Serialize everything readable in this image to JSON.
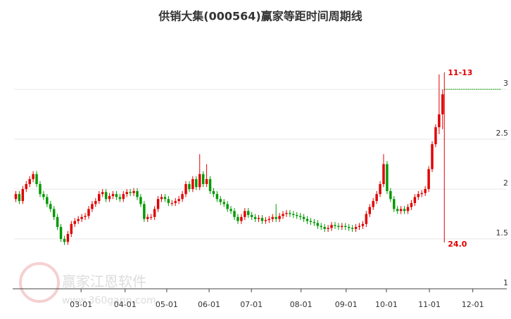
{
  "chart_data": {
    "type": "candlestick",
    "title": "供销大集(000564)赢家等距时间周期线",
    "open": [
      1.9,
      1.95,
      1.88,
      2.0,
      2.05,
      2.1,
      2.15,
      2.05,
      1.95,
      1.92,
      1.85,
      1.8,
      1.72,
      1.62,
      1.5,
      1.47,
      1.55,
      1.65,
      1.68,
      1.7,
      1.72,
      1.73,
      1.8,
      1.85,
      1.88,
      1.95,
      1.97,
      1.9,
      1.93,
      1.95,
      1.92,
      1.9,
      1.95,
      1.97,
      1.96,
      1.98,
      1.92,
      1.85,
      1.7,
      1.72,
      1.72,
      1.8,
      1.9,
      1.92,
      1.9,
      1.86,
      1.86,
      1.88,
      1.9,
      1.95,
      2.05,
      2.0,
      2.1,
      2.02,
      2.15,
      2.05,
      2.1,
      1.98,
      1.95,
      1.9,
      1.87,
      1.85,
      1.8,
      1.78,
      1.72,
      1.68,
      1.72,
      1.78,
      1.74,
      1.72,
      1.7,
      1.71,
      1.68,
      1.69,
      1.7,
      1.72,
      1.7,
      1.73,
      1.75,
      1.76,
      1.75,
      1.74,
      1.73,
      1.72,
      1.7,
      1.68,
      1.67,
      1.66,
      1.63,
      1.62,
      1.6,
      1.61,
      1.64,
      1.63,
      1.62,
      1.63,
      1.62,
      1.61,
      1.6,
      1.62,
      1.63,
      1.65,
      1.75,
      1.82,
      1.88,
      1.95,
      2.05,
      2.25,
      1.98,
      1.9,
      1.8,
      1.78,
      1.8,
      1.78,
      1.82,
      1.86,
      1.92,
      1.95,
      1.96,
      2.0,
      2.2,
      2.45,
      2.62,
      2.75
    ],
    "close": [
      1.95,
      1.88,
      2.0,
      2.05,
      2.1,
      2.15,
      2.05,
      1.95,
      1.92,
      1.85,
      1.8,
      1.72,
      1.62,
      1.5,
      1.47,
      1.55,
      1.65,
      1.68,
      1.7,
      1.72,
      1.73,
      1.8,
      1.85,
      1.88,
      1.95,
      1.97,
      1.9,
      1.93,
      1.95,
      1.92,
      1.9,
      1.95,
      1.97,
      1.96,
      1.98,
      1.92,
      1.85,
      1.7,
      1.72,
      1.72,
      1.8,
      1.9,
      1.92,
      1.9,
      1.86,
      1.86,
      1.88,
      1.9,
      1.95,
      2.05,
      2.0,
      2.1,
      2.02,
      2.15,
      2.05,
      2.1,
      1.98,
      1.95,
      1.9,
      1.87,
      1.85,
      1.8,
      1.78,
      1.72,
      1.68,
      1.72,
      1.78,
      1.74,
      1.72,
      1.7,
      1.71,
      1.68,
      1.69,
      1.7,
      1.72,
      1.7,
      1.73,
      1.75,
      1.76,
      1.75,
      1.74,
      1.73,
      1.72,
      1.7,
      1.68,
      1.67,
      1.66,
      1.63,
      1.62,
      1.6,
      1.61,
      1.64,
      1.63,
      1.62,
      1.63,
      1.62,
      1.61,
      1.6,
      1.62,
      1.63,
      1.65,
      1.75,
      1.82,
      1.88,
      1.95,
      2.05,
      2.25,
      1.98,
      1.9,
      1.8,
      1.78,
      1.8,
      1.78,
      1.82,
      1.86,
      1.92,
      1.95,
      1.96,
      2.0,
      2.2,
      2.45,
      2.62,
      2.75,
      2.95
    ],
    "high": [
      1.98,
      1.98,
      2.03,
      2.08,
      2.13,
      2.18,
      2.18,
      2.08,
      1.98,
      1.95,
      1.88,
      1.83,
      1.75,
      1.65,
      1.53,
      1.58,
      1.68,
      1.71,
      1.73,
      1.75,
      1.76,
      1.83,
      1.88,
      1.91,
      1.98,
      2.0,
      2.0,
      1.96,
      1.98,
      1.98,
      1.95,
      1.98,
      2.0,
      2.0,
      2.01,
      2.01,
      1.95,
      1.88,
      1.75,
      1.75,
      1.83,
      1.93,
      1.95,
      1.95,
      1.93,
      1.89,
      1.91,
      1.93,
      1.98,
      2.08,
      2.08,
      2.13,
      2.13,
      2.35,
      2.18,
      2.25,
      2.13,
      2.01,
      1.98,
      1.93,
      1.9,
      1.88,
      1.83,
      1.81,
      1.75,
      1.75,
      1.81,
      1.81,
      1.77,
      1.75,
      1.74,
      1.74,
      1.72,
      1.73,
      1.75,
      1.85,
      1.76,
      1.78,
      1.79,
      1.79,
      1.78,
      1.77,
      1.76,
      1.75,
      1.73,
      1.71,
      1.7,
      1.69,
      1.66,
      1.65,
      1.64,
      1.67,
      1.67,
      1.66,
      1.66,
      1.66,
      1.65,
      1.64,
      1.65,
      1.66,
      1.68,
      1.78,
      1.85,
      1.91,
      1.98,
      2.08,
      2.35,
      2.28,
      2.01,
      1.93,
      1.83,
      1.83,
      1.83,
      1.85,
      1.89,
      1.95,
      1.98,
      1.99,
      2.03,
      2.23,
      2.48,
      2.65,
      3.15,
      3.0
    ],
    "low": [
      1.87,
      1.85,
      1.85,
      1.97,
      2.02,
      2.07,
      2.02,
      1.92,
      1.89,
      1.82,
      1.77,
      1.69,
      1.59,
      1.47,
      1.44,
      1.44,
      1.52,
      1.62,
      1.65,
      1.67,
      1.69,
      1.7,
      1.77,
      1.82,
      1.85,
      1.92,
      1.87,
      1.87,
      1.9,
      1.89,
      1.87,
      1.87,
      1.92,
      1.93,
      1.93,
      1.89,
      1.82,
      1.67,
      1.67,
      1.69,
      1.69,
      1.77,
      1.87,
      1.87,
      1.83,
      1.83,
      1.83,
      1.85,
      1.87,
      1.92,
      1.97,
      1.97,
      1.99,
      1.99,
      2.02,
      2.02,
      1.95,
      1.92,
      1.87,
      1.84,
      1.82,
      1.77,
      1.75,
      1.69,
      1.65,
      1.65,
      1.69,
      1.71,
      1.69,
      1.67,
      1.67,
      1.65,
      1.65,
      1.66,
      1.67,
      1.67,
      1.67,
      1.7,
      1.72,
      1.72,
      1.71,
      1.7,
      1.69,
      1.67,
      1.65,
      1.64,
      1.63,
      1.6,
      1.59,
      1.57,
      1.57,
      1.58,
      1.6,
      1.59,
      1.59,
      1.59,
      1.58,
      1.57,
      1.57,
      1.59,
      1.6,
      1.62,
      1.72,
      1.79,
      1.85,
      1.92,
      2.02,
      1.95,
      1.87,
      1.77,
      1.75,
      1.75,
      1.75,
      1.75,
      1.79,
      1.83,
      1.89,
      1.92,
      1.93,
      1.97,
      2.17,
      2.42,
      2.55,
      2.6
    ],
    "up_color": "#e00000",
    "down_color": "#009a00",
    "xlim": [
      0,
      142
    ],
    "xticks": [
      {
        "value": 19.3,
        "label": "03-01"
      },
      {
        "value": 32,
        "label": "04-01"
      },
      {
        "value": 44,
        "label": "05-01"
      },
      {
        "value": 56.2,
        "label": "06-01"
      },
      {
        "value": 68.4,
        "label": "07-01"
      },
      {
        "value": 82.7,
        "label": "08-01"
      },
      {
        "value": 95.7,
        "label": "09-01"
      },
      {
        "value": 107.3,
        "label": "10-01"
      },
      {
        "value": 119.7,
        "label": "11-01"
      },
      {
        "value": 132.2,
        "label": "12-01"
      }
    ],
    "ylim": [
      1,
      3.6
    ],
    "yticks": [
      1,
      1.5,
      2,
      2.5,
      3
    ],
    "grid": true,
    "cycle_marker": {
      "x": 124,
      "label": "11-13",
      "bottom_label": "24.0",
      "color": "#e00000"
    },
    "level_line": {
      "value": 3,
      "color": "#009a00"
    },
    "watermark": {
      "name": "赢家江恩软件",
      "url": "www.360gann.com"
    }
  }
}
